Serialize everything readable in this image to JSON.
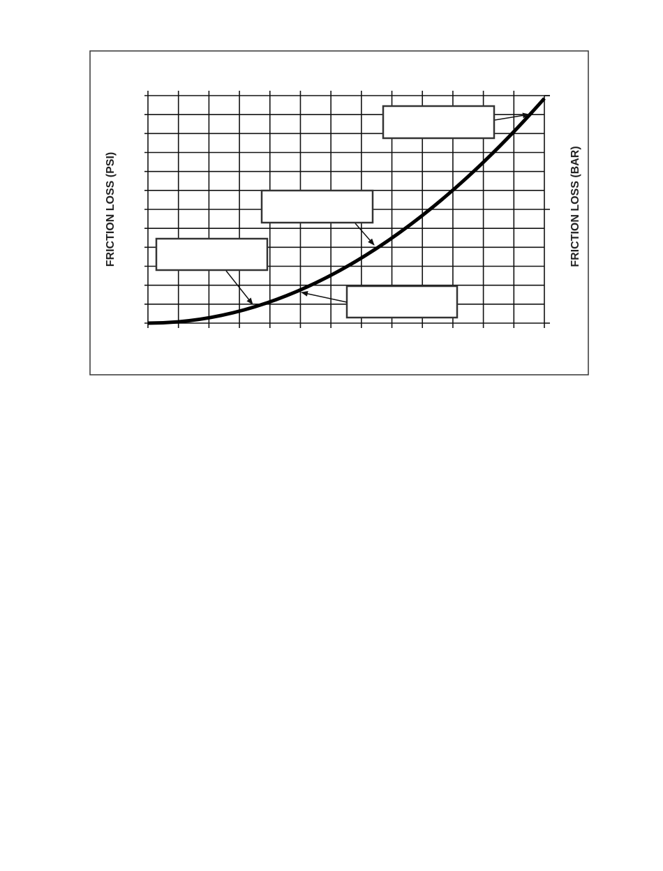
{
  "figure": {
    "left_axis_label": "FRICTION LOSS (PSI)",
    "right_axis_label": "FRICTION LOSS (BAR)"
  }
}
